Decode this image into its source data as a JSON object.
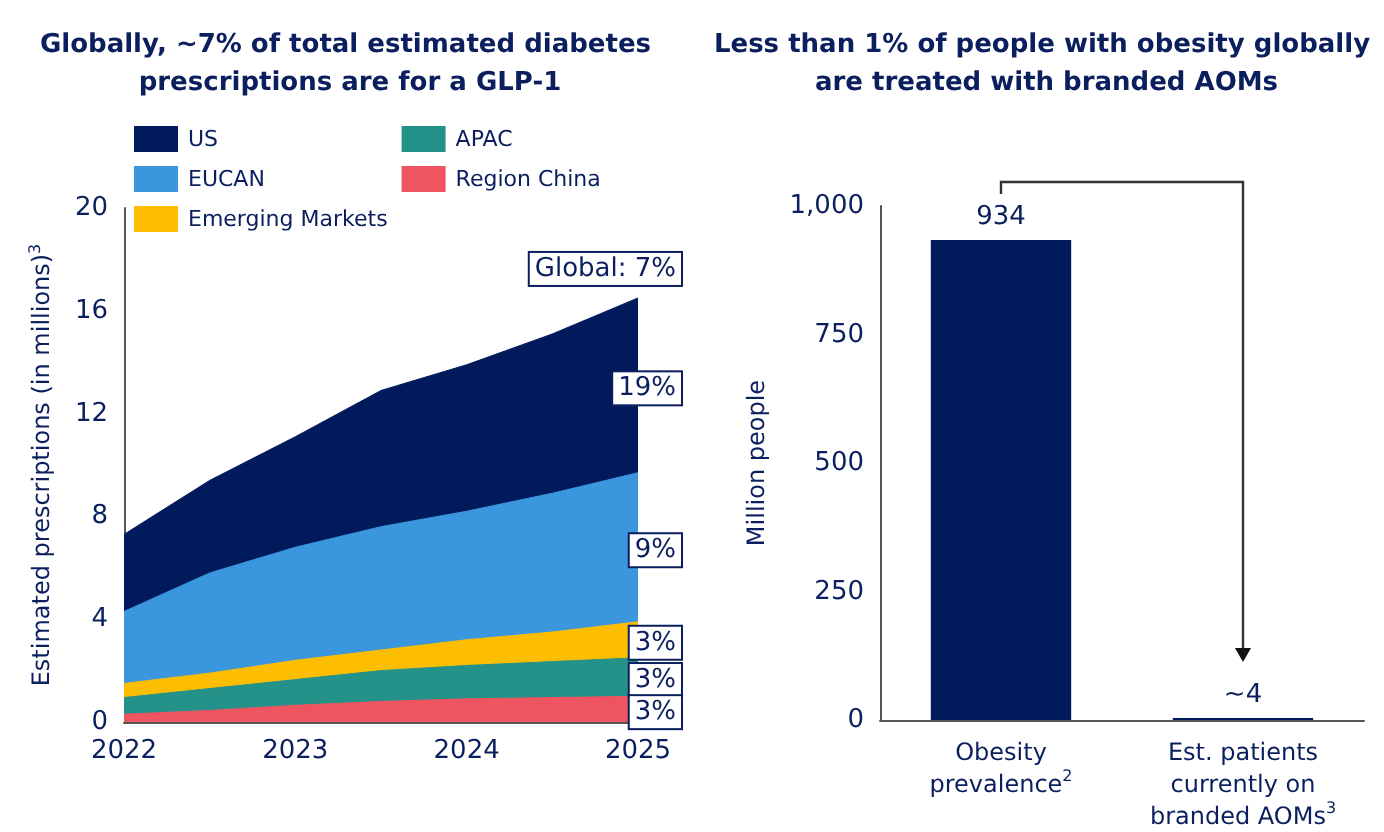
{
  "chart_data": [
    {
      "type": "area",
      "title": "Globally, ~7% of total estimated diabetes prescriptions are for a GLP-1",
      "ylabel": "Estimated prescriptions (in millions)$^{3}$",
      "stacked": true,
      "legend": "top left",
      "x": [
        2022,
        2022.5,
        2023,
        2023.5,
        2024,
        2024.5,
        2025
      ],
      "series": [
        {
          "name": "Region China",
          "color": "#ef5461",
          "values": [
            0.3,
            0.45,
            0.65,
            0.8,
            0.9,
            0.95,
            1.0
          ]
        },
        {
          "name": "APAC",
          "color": "#25928a",
          "values": [
            0.65,
            0.85,
            1.0,
            1.2,
            1.3,
            1.4,
            1.5
          ]
        },
        {
          "name": "Emerging Markets",
          "color": "#fdbd00",
          "values": [
            0.55,
            0.6,
            0.75,
            0.8,
            1.0,
            1.15,
            1.4
          ]
        },
        {
          "name": "EUCAN",
          "color": "#3b97dd",
          "values": [
            2.8,
            3.9,
            4.4,
            4.8,
            5.0,
            5.4,
            5.8
          ]
        },
        {
          "name": "US",
          "color": "#001a5c",
          "values": [
            3.0,
            3.6,
            4.3,
            5.3,
            5.7,
            6.2,
            6.8
          ]
        }
      ],
      "xlim": [
        2022,
        2025
      ],
      "xticks": [
        2022,
        2023,
        2024,
        2025
      ],
      "ylim": [
        0,
        20
      ],
      "yticks": [
        0,
        4,
        8,
        12,
        16,
        20
      ],
      "annotations": [
        "Global: 7%",
        "19%",
        "9%",
        "3%",
        "3%",
        "3%"
      ]
    },
    {
      "type": "bar",
      "title": "Less than 1% of people with obesity globally are treated with branded AOMs",
      "ylabel": "Million people",
      "categories": [
        "Obesity prevalence$^{2}$",
        "Est. patients currently on branded AOMs$^{3}$"
      ],
      "values": [
        934,
        4
      ],
      "color": "#001a5c",
      "value_labels": [
        "934",
        "~4"
      ],
      "ylim": [
        0,
        1000
      ],
      "yticks": [
        0,
        250,
        500,
        750,
        {
          "value": 1000,
          "label": "1,000"
        }
      ]
    }
  ]
}
